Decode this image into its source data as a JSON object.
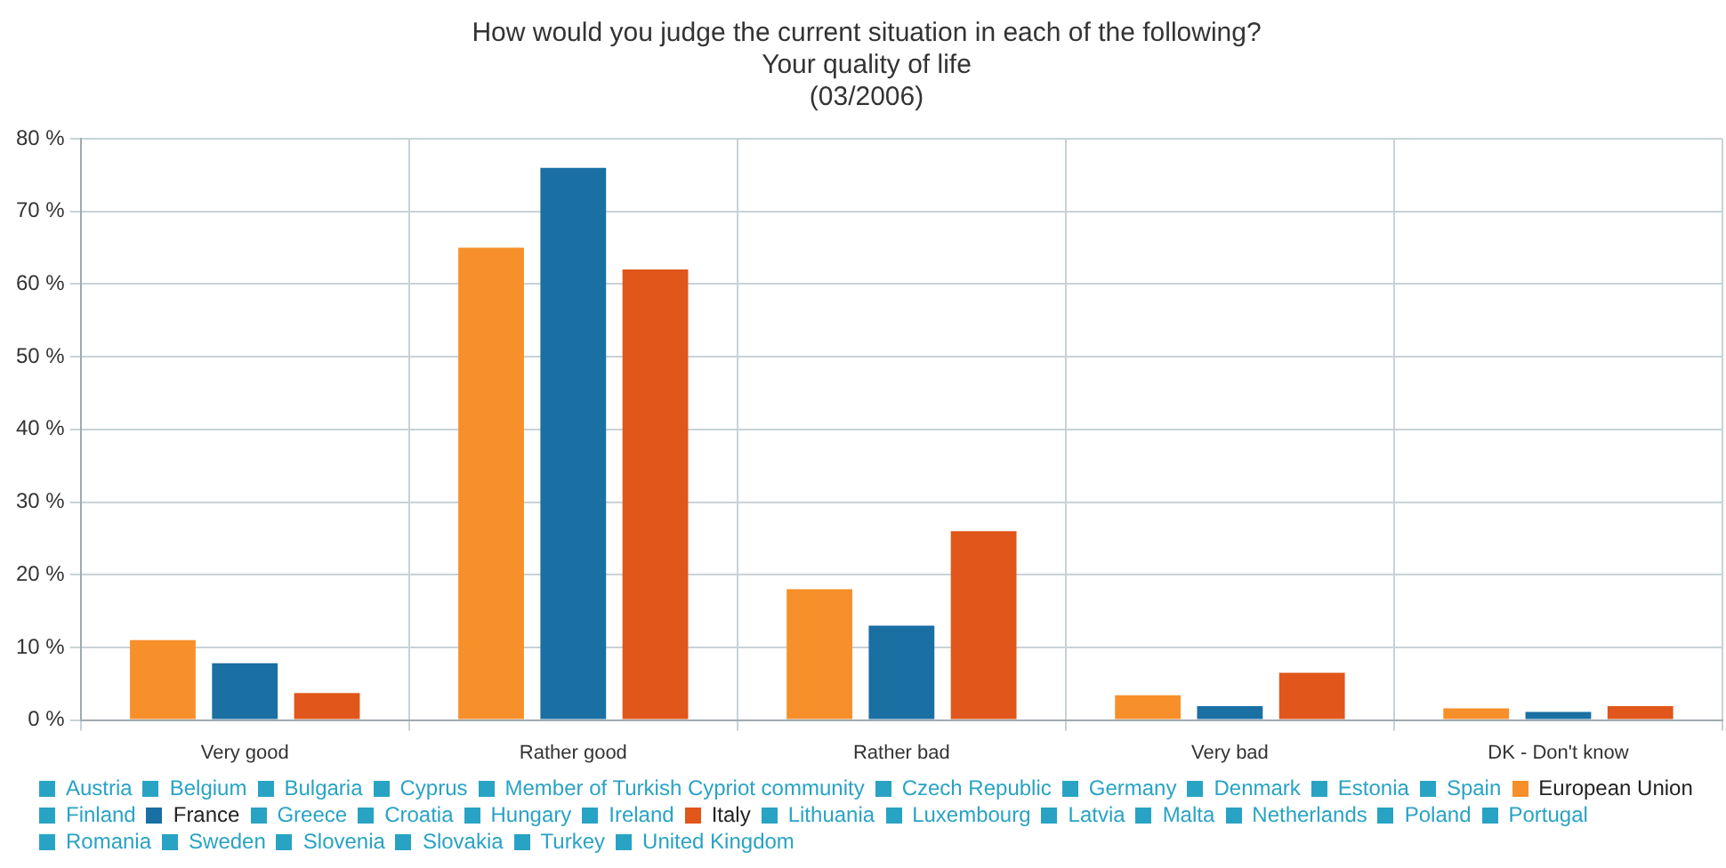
{
  "chart_data": {
    "type": "bar",
    "title": "How would you judge the current situation in each of the following?",
    "subtitle": "Your quality of life\n(03/2006)",
    "categories": [
      "Very good",
      "Rather good",
      "Rather bad",
      "Very bad",
      "DK - Don't know"
    ],
    "ylim": [
      0,
      80
    ],
    "yticks": [
      {
        "value": 0,
        "label": "0 %"
      },
      {
        "value": 10,
        "label": "10 %"
      },
      {
        "value": 20,
        "label": "20 %"
      },
      {
        "value": 30,
        "label": "30 %"
      },
      {
        "value": 40,
        "label": "40 %"
      },
      {
        "value": 50,
        "label": "50 %"
      },
      {
        "value": 60,
        "label": "60 %"
      },
      {
        "value": 70,
        "label": "70 %"
      },
      {
        "value": 80,
        "label": "80 %"
      }
    ],
    "grid": true,
    "legend": "bottom",
    "series": [
      {
        "name": "Austria",
        "color": "#29a3c4",
        "values": [
          null,
          null,
          null,
          null,
          null
        ]
      },
      {
        "name": "Belgium",
        "color": "#29a3c4",
        "values": [
          null,
          null,
          null,
          null,
          null
        ]
      },
      {
        "name": "Bulgaria",
        "color": "#29a3c4",
        "values": [
          null,
          null,
          null,
          null,
          null
        ]
      },
      {
        "name": "Cyprus",
        "color": "#29a3c4",
        "values": [
          null,
          null,
          null,
          null,
          null
        ]
      },
      {
        "name": "Member of Turkish Cypriot community",
        "color": "#29a3c4",
        "values": [
          null,
          null,
          null,
          null,
          null
        ]
      },
      {
        "name": "Czech Republic",
        "color": "#29a3c4",
        "values": [
          null,
          null,
          null,
          null,
          null
        ]
      },
      {
        "name": "Germany",
        "color": "#29a3c4",
        "values": [
          null,
          null,
          null,
          null,
          null
        ]
      },
      {
        "name": "Denmark",
        "color": "#29a3c4",
        "values": [
          null,
          null,
          null,
          null,
          null
        ]
      },
      {
        "name": "Estonia",
        "color": "#29a3c4",
        "values": [
          null,
          null,
          null,
          null,
          null
        ]
      },
      {
        "name": "Spain",
        "color": "#29a3c4",
        "values": [
          null,
          null,
          null,
          null,
          null
        ]
      },
      {
        "name": "European Union",
        "color": "#f7902a",
        "values": [
          11,
          65,
          18,
          3.4,
          1.6
        ]
      },
      {
        "name": "Finland",
        "color": "#29a3c4",
        "values": [
          null,
          null,
          null,
          null,
          null
        ]
      },
      {
        "name": "France",
        "color": "#1a6fa3",
        "values": [
          7.8,
          76,
          13,
          1.9,
          1.1
        ]
      },
      {
        "name": "Greece",
        "color": "#29a3c4",
        "values": [
          null,
          null,
          null,
          null,
          null
        ]
      },
      {
        "name": "Croatia",
        "color": "#29a3c4",
        "values": [
          null,
          null,
          null,
          null,
          null
        ]
      },
      {
        "name": "Hungary",
        "color": "#29a3c4",
        "values": [
          null,
          null,
          null,
          null,
          null
        ]
      },
      {
        "name": "Ireland",
        "color": "#29a3c4",
        "values": [
          null,
          null,
          null,
          null,
          null
        ]
      },
      {
        "name": "Italy",
        "color": "#e0561b",
        "values": [
          3.7,
          62,
          26,
          6.5,
          1.9
        ]
      },
      {
        "name": "Lithuania",
        "color": "#29a3c4",
        "values": [
          null,
          null,
          null,
          null,
          null
        ]
      },
      {
        "name": "Luxembourg",
        "color": "#29a3c4",
        "values": [
          null,
          null,
          null,
          null,
          null
        ]
      },
      {
        "name": "Latvia",
        "color": "#29a3c4",
        "values": [
          null,
          null,
          null,
          null,
          null
        ]
      },
      {
        "name": "Malta",
        "color": "#29a3c4",
        "values": [
          null,
          null,
          null,
          null,
          null
        ]
      },
      {
        "name": "Netherlands",
        "color": "#29a3c4",
        "values": [
          null,
          null,
          null,
          null,
          null
        ]
      },
      {
        "name": "Poland",
        "color": "#29a3c4",
        "values": [
          null,
          null,
          null,
          null,
          null
        ]
      },
      {
        "name": "Portugal",
        "color": "#29a3c4",
        "values": [
          null,
          null,
          null,
          null,
          null
        ]
      },
      {
        "name": "Romania",
        "color": "#29a3c4",
        "values": [
          null,
          null,
          null,
          null,
          null
        ]
      },
      {
        "name": "Sweden",
        "color": "#29a3c4",
        "values": [
          null,
          null,
          null,
          null,
          null
        ]
      },
      {
        "name": "Slovenia",
        "color": "#29a3c4",
        "values": [
          null,
          null,
          null,
          null,
          null
        ]
      },
      {
        "name": "Slovakia",
        "color": "#29a3c4",
        "values": [
          null,
          null,
          null,
          null,
          null
        ]
      },
      {
        "name": "Turkey",
        "color": "#29a3c4",
        "values": [
          null,
          null,
          null,
          null,
          null
        ]
      },
      {
        "name": "United Kingdom",
        "color": "#29a3c4",
        "values": [
          null,
          null,
          null,
          null,
          null
        ]
      }
    ]
  }
}
